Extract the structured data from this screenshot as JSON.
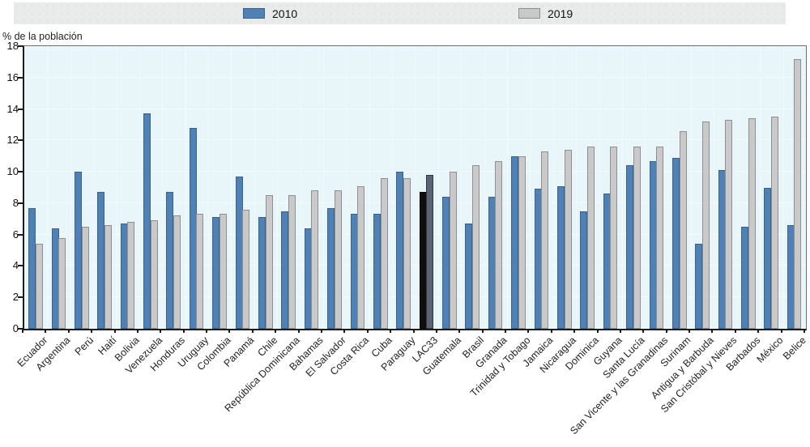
{
  "legend": {
    "items": [
      {
        "label": "2010",
        "color": "#4f81b4",
        "border": "#3a628c"
      },
      {
        "label": "2019",
        "color": "#c9c9c9",
        "border": "#8f8f8f"
      }
    ]
  },
  "chart_data": {
    "type": "bar",
    "title": "",
    "xlabel": "",
    "ylabel": "% de la población",
    "ylim": [
      0,
      18
    ],
    "ytick_step": 2,
    "grid": true,
    "legend_position": "top",
    "plot_background": "#e8f6fa",
    "categories": [
      "Ecuador",
      "Argentina",
      "Perú",
      "Haití",
      "Bolivia",
      "Venezuela",
      "Honduras",
      "Uruguay",
      "Colombia",
      "Panamá",
      "Chile",
      "República Dominicana",
      "Bahamas",
      "El Salvador",
      "Costa Rica",
      "Cuba",
      "Paraguay",
      "LAC33",
      "Guatemala",
      "Brasil",
      "Granada",
      "Trinidad y Tobago",
      "Jamaica",
      "Nicaragua",
      "Dominica",
      "Guyana",
      "Santa Lucía",
      "San Vicente y las Granadinas",
      "Surinam",
      "Antigua y Barbuda",
      "San Cristóbal y Nieves",
      "Barbados",
      "México",
      "Belice"
    ],
    "series": [
      {
        "name": "2010",
        "color": "#4f81b4",
        "border_color": "#3a628c",
        "values": [
          7.7,
          6.4,
          10.0,
          8.7,
          6.7,
          13.7,
          8.7,
          12.8,
          7.1,
          9.7,
          7.1,
          7.5,
          6.4,
          7.7,
          7.3,
          7.3,
          10.0,
          8.7,
          8.4,
          6.7,
          8.4,
          11.0,
          8.9,
          9.1,
          7.5,
          8.6,
          10.4,
          10.7,
          10.9,
          5.4,
          10.1,
          6.5,
          9.0,
          6.6
        ]
      },
      {
        "name": "2019",
        "color": "#c9c9c9",
        "border_color": "#8f8f8f",
        "values": [
          5.4,
          5.8,
          6.5,
          6.6,
          6.8,
          6.9,
          7.2,
          7.3,
          7.3,
          7.6,
          8.5,
          8.5,
          8.8,
          8.8,
          9.1,
          9.6,
          9.6,
          9.8,
          10.0,
          10.4,
          10.7,
          11.0,
          11.3,
          11.4,
          11.6,
          11.6,
          11.6,
          11.6,
          12.6,
          13.2,
          13.3,
          13.4,
          13.5,
          17.2
        ]
      }
    ],
    "highlight": {
      "category": "LAC33",
      "series_colors": [
        "#0e0e0e",
        "#5b6472"
      ],
      "series_border_colors": [
        "#000000",
        "#32383f"
      ]
    }
  }
}
